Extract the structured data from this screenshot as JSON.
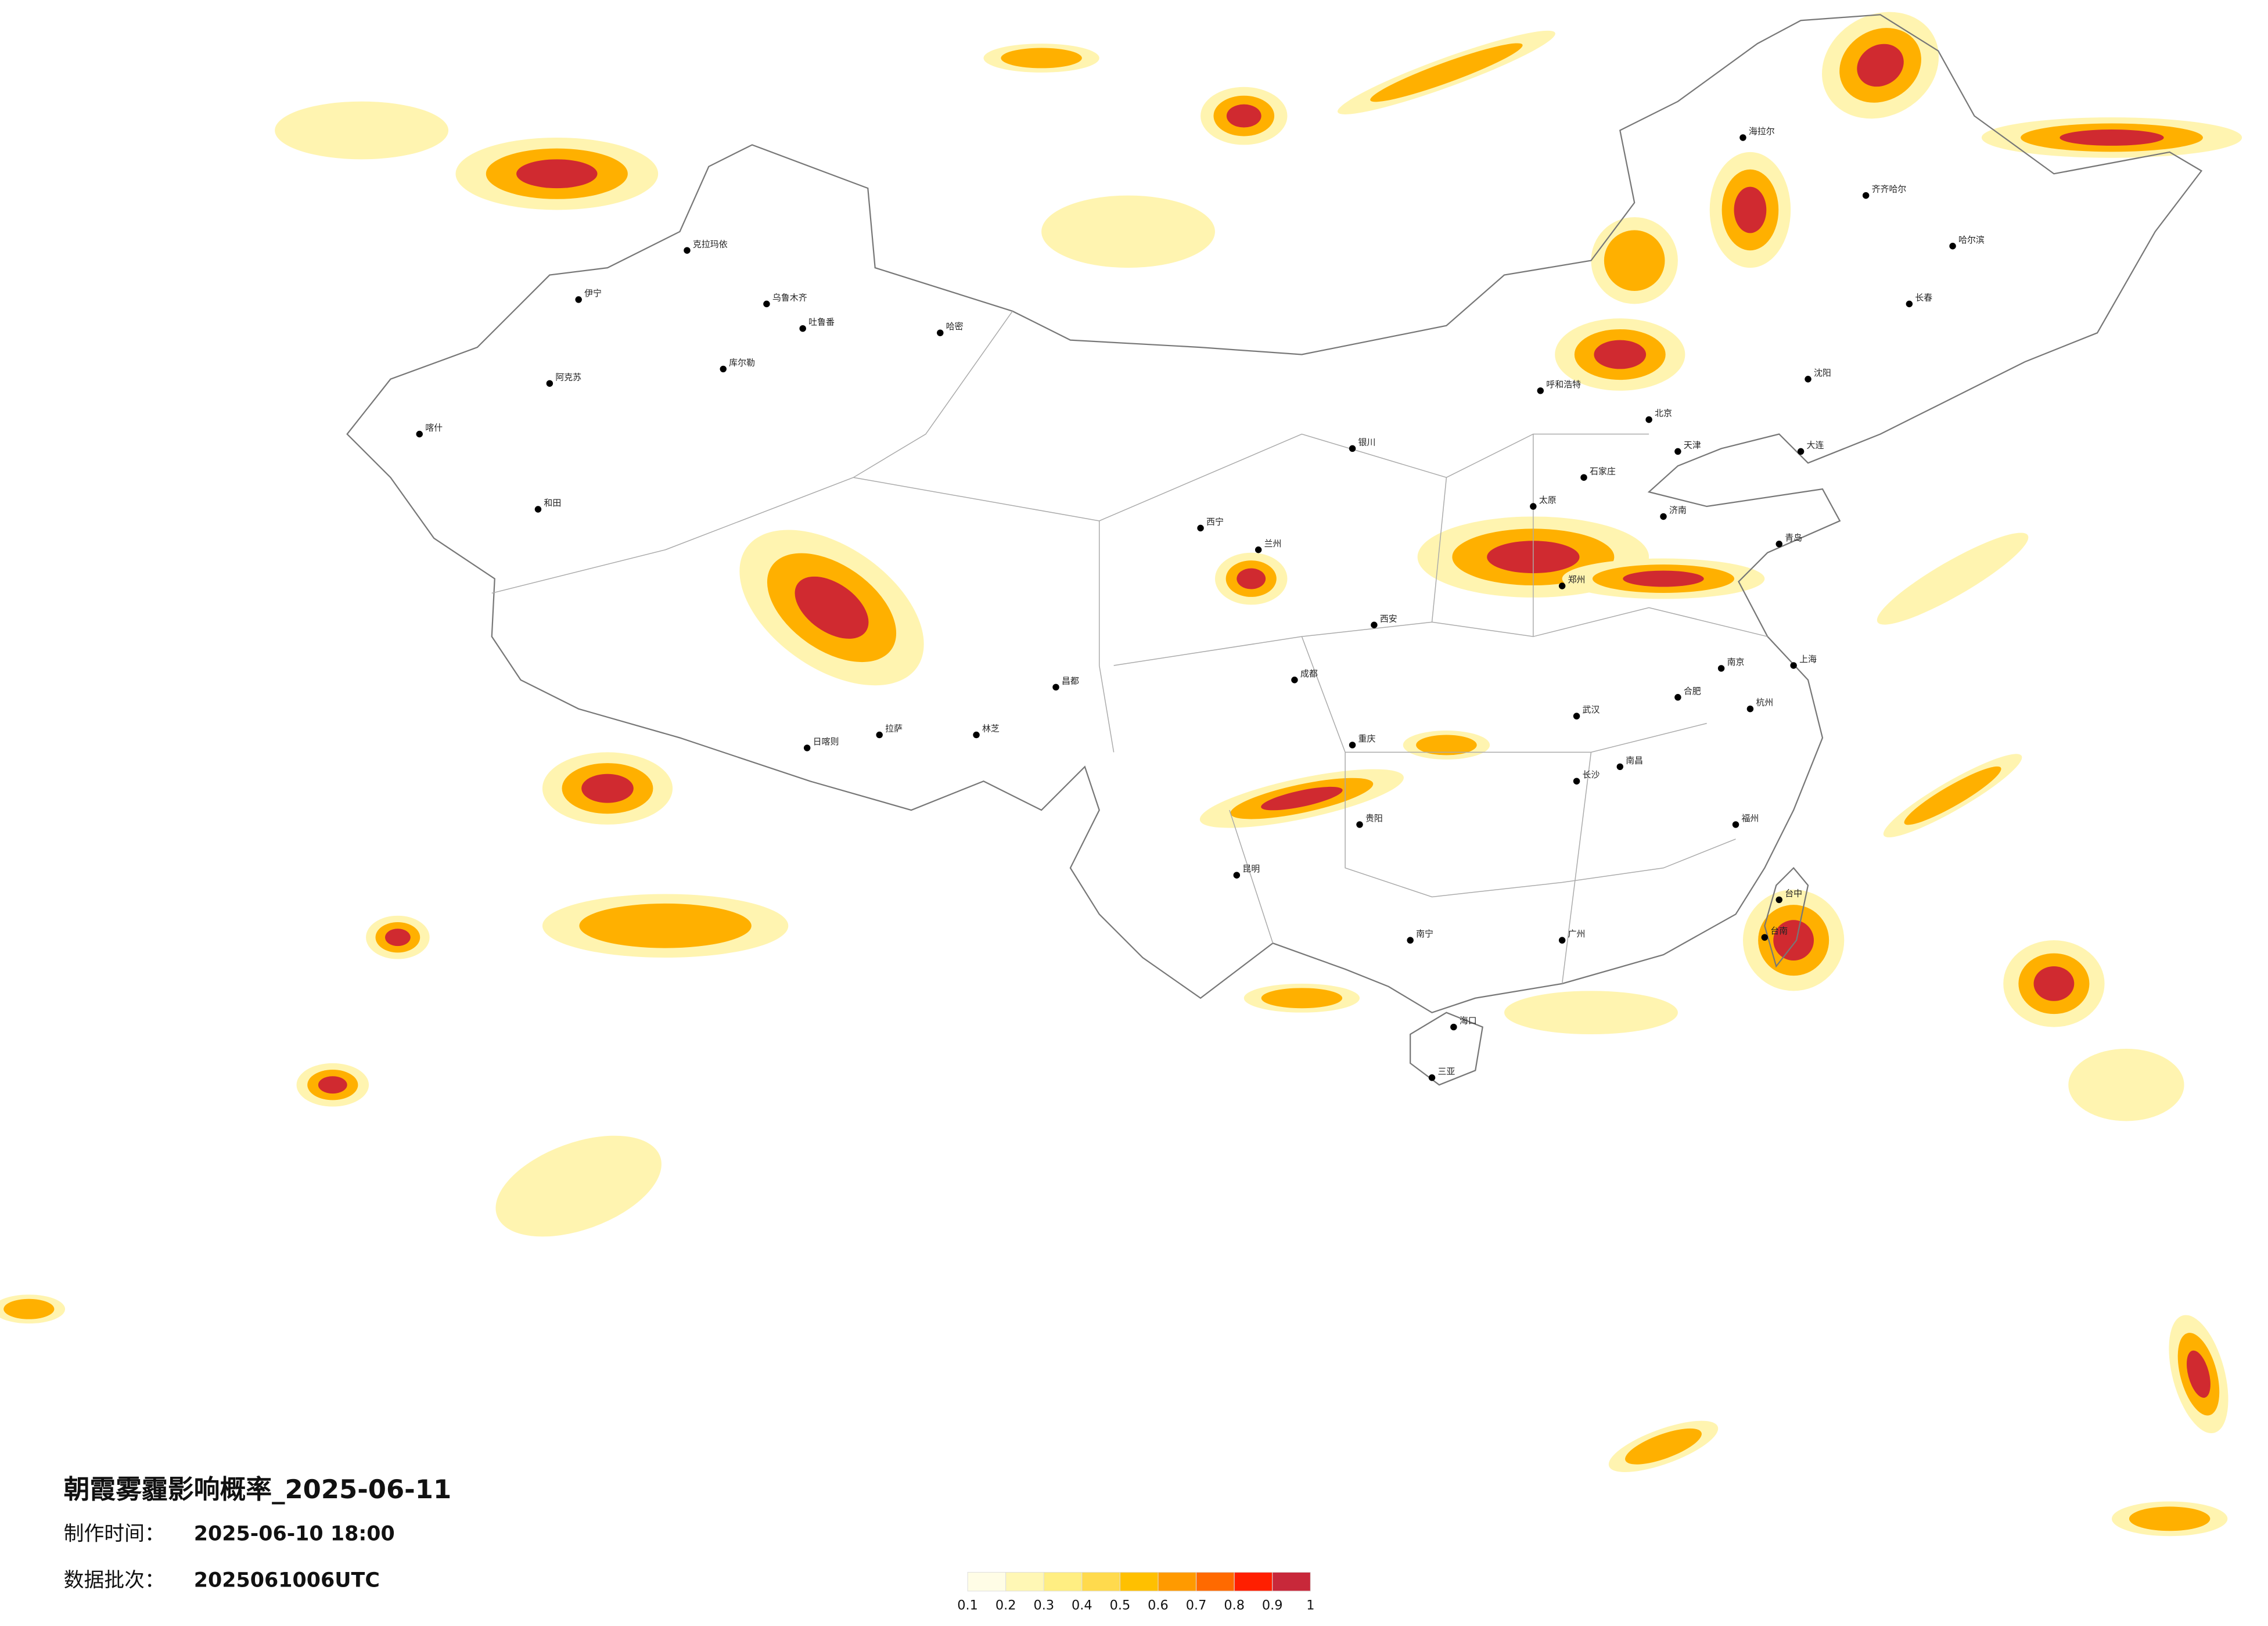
{
  "title": "朝霞雾霾影响概率_2025-06-11",
  "production_time": {
    "label": "制作时间：",
    "value": "2025-06-10 18:00"
  },
  "batch": {
    "label": "数据批次：",
    "value": "2025061006UTC"
  },
  "legend": {
    "ticks": [
      0.1,
      0.2,
      0.3,
      0.4,
      0.5,
      0.6,
      0.7,
      0.8,
      0.9,
      1
    ],
    "colors": [
      "#fffde6",
      "#fff7b5",
      "#ffee82",
      "#ffda4d",
      "#ffc000",
      "#ff9a00",
      "#ff6a00",
      "#ff1f00",
      "#c8283a"
    ]
  },
  "cities": [
    "乌鲁木齐",
    "克拉玛依",
    "伊宁",
    "阿克苏",
    "喀什",
    "和田",
    "哈密",
    "库尔勒",
    "吐鲁番",
    "拉萨",
    "日喀则",
    "林芝",
    "昌都",
    "西宁",
    "兰州",
    "银川",
    "呼和浩特",
    "北京",
    "天津",
    "石家庄",
    "太原",
    "济南",
    "郑州",
    "西安",
    "武汉",
    "长沙",
    "成都",
    "重庆",
    "贵阳",
    "昆明",
    "南宁",
    "广州",
    "南昌",
    "福州",
    "杭州",
    "上海",
    "南京",
    "合肥",
    "沈阳",
    "长春",
    "哈尔滨",
    "海拉尔",
    "齐齐哈尔",
    "大连",
    "青岛",
    "海口",
    "三亚",
    "台中",
    "台南"
  ]
}
